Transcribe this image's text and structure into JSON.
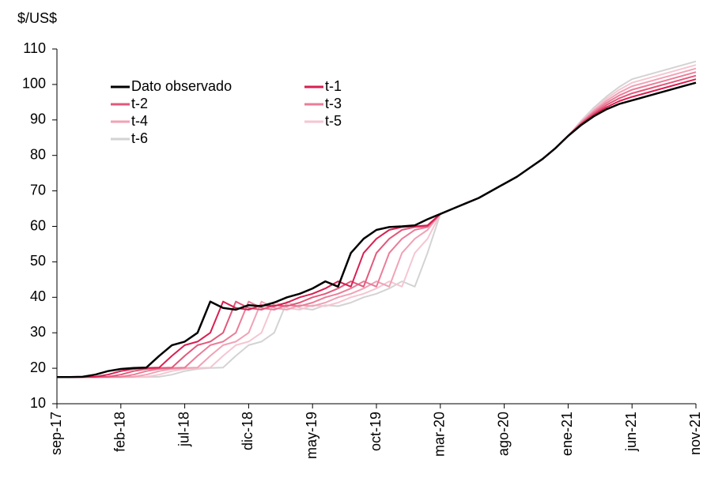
{
  "chart_data": {
    "type": "line",
    "y_label": "$/US$",
    "categories": [
      "sep-17",
      null,
      null,
      null,
      null,
      "feb-18",
      null,
      null,
      null,
      null,
      "jul-18",
      null,
      null,
      null,
      null,
      "dic-18",
      null,
      null,
      null,
      null,
      "may-19",
      null,
      null,
      null,
      null,
      "oct-19",
      null,
      null,
      null,
      null,
      "mar-20",
      null,
      null,
      null,
      null,
      "ago-20",
      null,
      null,
      null,
      null,
      "ene-21",
      null,
      null,
      null,
      null,
      "jun-21",
      null,
      null,
      null,
      null,
      "nov-21"
    ],
    "ylim": [
      10,
      110
    ],
    "yticks": [
      10,
      20,
      30,
      40,
      50,
      60,
      70,
      80,
      90,
      100,
      110
    ],
    "grid": false,
    "legend": "upper-left",
    "series": [
      {
        "name": "Dato observado",
        "color": "#000000",
        "values": [
          17.5,
          17.5,
          17.6,
          18.2,
          19.2,
          19.8,
          20.1,
          20.2,
          23.5,
          26.5,
          27.5,
          30,
          38.8,
          37,
          36.5,
          37.8,
          37.5,
          38.5,
          40,
          41,
          42.5,
          44.5,
          43,
          52.5,
          56.5,
          59,
          59.8,
          60,
          60.3,
          62,
          63.5,
          65,
          66.5,
          68,
          70,
          72,
          74,
          76.5,
          79,
          82,
          85.5,
          88.5,
          91,
          93,
          94.5,
          95.5,
          96.5,
          97.5,
          98.5,
          99.5,
          100.5
        ]
      },
      {
        "name": "t-1",
        "color": "#d81f50",
        "values": [
          17.5,
          17.5,
          17.5,
          17.6,
          18.2,
          19.2,
          19.8,
          20.1,
          20.2,
          23.5,
          26.5,
          27.5,
          30,
          38.8,
          37,
          36.5,
          37.8,
          37.5,
          38.5,
          40,
          41,
          42.5,
          44.5,
          43,
          52.5,
          56.5,
          59,
          59.8,
          60,
          60.3,
          63.5,
          65,
          66.5,
          68,
          70,
          72,
          74,
          76.5,
          79,
          82,
          85.5,
          88.7,
          91.4,
          93.6,
          95.3,
          96.5,
          97.5,
          98.5,
          99.5,
          100.5,
          101.5
        ]
      },
      {
        "name": "t-2",
        "color": "#e2587a",
        "values": [
          17.5,
          17.5,
          17.5,
          17.5,
          17.6,
          18.2,
          19.2,
          19.8,
          20.1,
          20.2,
          23.5,
          26.5,
          27.5,
          30,
          38.8,
          37,
          36.5,
          37.8,
          37.5,
          38.5,
          40,
          41,
          42.5,
          44.5,
          43,
          52.5,
          56.5,
          59,
          59.8,
          60,
          63.5,
          65,
          66.5,
          68,
          70,
          72,
          74,
          76.5,
          79,
          82,
          85.5,
          88.9,
          91.8,
          94.2,
          96.1,
          97.5,
          98.5,
          99.5,
          100.5,
          101.5,
          102.5
        ]
      },
      {
        "name": "t-3",
        "color": "#ea7d98",
        "values": [
          17.5,
          17.5,
          17.5,
          17.5,
          17.5,
          17.6,
          18.2,
          19.2,
          19.8,
          20.1,
          20.2,
          23.5,
          26.5,
          27.5,
          30,
          38.8,
          37,
          36.5,
          37.8,
          37.5,
          38.5,
          40,
          41,
          42.5,
          44.5,
          43,
          52.5,
          56.5,
          59,
          59.8,
          63.5,
          65,
          66.5,
          68,
          70,
          72,
          74,
          76.5,
          79,
          82,
          85.5,
          89.1,
          92.2,
          94.8,
          96.9,
          98.5,
          99.5,
          100.5,
          101.5,
          102.5,
          103.5
        ]
      },
      {
        "name": "t-4",
        "color": "#f0a2b6",
        "values": [
          17.5,
          17.5,
          17.5,
          17.5,
          17.5,
          17.5,
          17.6,
          18.2,
          19.2,
          19.8,
          20.1,
          20.2,
          23.5,
          26.5,
          27.5,
          30,
          38.8,
          37,
          36.5,
          37.8,
          37.5,
          38.5,
          40,
          41,
          42.5,
          44.5,
          43,
          52.5,
          56.5,
          59,
          63.5,
          65,
          66.5,
          68,
          70,
          72,
          74,
          76.5,
          79,
          82,
          85.5,
          89.3,
          92.6,
          95.4,
          97.7,
          99.5,
          100.5,
          101.5,
          102.5,
          103.5,
          104.5
        ]
      },
      {
        "name": "t-5",
        "color": "#f5c6d2",
        "values": [
          17.5,
          17.5,
          17.5,
          17.5,
          17.5,
          17.5,
          17.5,
          17.6,
          18.2,
          19.2,
          19.8,
          20.1,
          20.2,
          23.5,
          26.5,
          27.5,
          30,
          38.8,
          37,
          36.5,
          37.8,
          37.5,
          38.5,
          40,
          41,
          42.5,
          44.5,
          43,
          52.5,
          56.5,
          63.5,
          65,
          66.5,
          68,
          70,
          72,
          74,
          76.5,
          79,
          82,
          85.5,
          89.5,
          93,
          96,
          98.5,
          100.5,
          101.5,
          102.5,
          103.5,
          104.5,
          105.5
        ]
      },
      {
        "name": "t-6",
        "color": "#d3d3d3",
        "values": [
          17.5,
          17.5,
          17.5,
          17.5,
          17.5,
          17.5,
          17.5,
          17.5,
          17.6,
          18.2,
          19.2,
          19.8,
          20.1,
          20.2,
          23.5,
          26.5,
          27.5,
          30,
          38.8,
          37,
          36.5,
          37.8,
          37.5,
          38.5,
          40,
          41,
          42.5,
          44.5,
          43,
          52.5,
          63.5,
          65,
          66.5,
          68,
          70,
          72,
          74,
          76.5,
          79,
          82,
          85.5,
          89.7,
          93.4,
          96.6,
          99.3,
          101.5,
          102.5,
          103.5,
          104.5,
          105.5,
          106.5
        ]
      }
    ]
  }
}
